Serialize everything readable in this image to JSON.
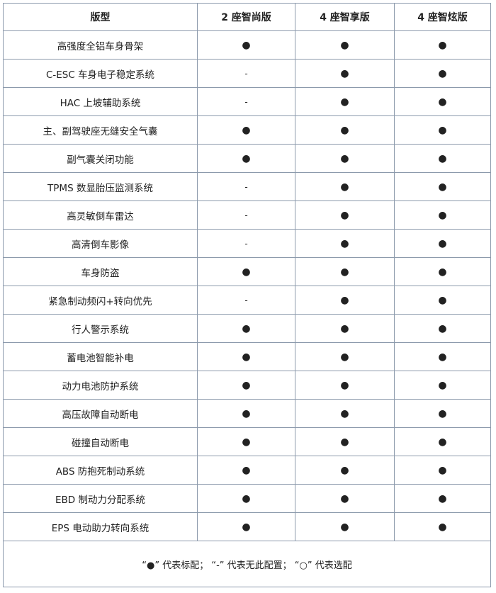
{
  "headers": [
    "版型",
    "2 座智尚版",
    "4 座智享版",
    "4 座智炫版"
  ],
  "symbols": {
    "standard": "●",
    "none": "-",
    "optional": "○"
  },
  "rows": [
    {
      "feature": "高强度全铝车身骨架",
      "values": [
        "●",
        "●",
        "●"
      ]
    },
    {
      "feature": "C-ESC 车身电子稳定系统",
      "values": [
        "-",
        "●",
        "●"
      ]
    },
    {
      "feature": "HAC 上坡辅助系统",
      "values": [
        "-",
        "●",
        "●"
      ]
    },
    {
      "feature": "主、副驾驶座无缝安全气囊",
      "values": [
        "●",
        "●",
        "●"
      ]
    },
    {
      "feature": "副气囊关闭功能",
      "values": [
        "●",
        "●",
        "●"
      ]
    },
    {
      "feature": "TPMS 数显胎压监测系统",
      "values": [
        "-",
        "●",
        "●"
      ]
    },
    {
      "feature": "高灵敏倒车雷达",
      "values": [
        "-",
        "●",
        "●"
      ]
    },
    {
      "feature": "高清倒车影像",
      "values": [
        "-",
        "●",
        "●"
      ]
    },
    {
      "feature": "车身防盗",
      "values": [
        "●",
        "●",
        "●"
      ]
    },
    {
      "feature": "紧急制动频闪+转向优先",
      "values": [
        "-",
        "●",
        "●"
      ]
    },
    {
      "feature": "行人警示系统",
      "values": [
        "●",
        "●",
        "●"
      ]
    },
    {
      "feature": "蓄电池智能补电",
      "values": [
        "●",
        "●",
        "●"
      ]
    },
    {
      "feature": "动力电池防护系统",
      "values": [
        "●",
        "●",
        "●"
      ]
    },
    {
      "feature": "高压故障自动断电",
      "values": [
        "●",
        "●",
        "●"
      ]
    },
    {
      "feature": "碰撞自动断电",
      "values": [
        "●",
        "●",
        "●"
      ]
    },
    {
      "feature": "ABS 防抱死制动系统",
      "values": [
        "●",
        "●",
        "●"
      ]
    },
    {
      "feature": "EBD 制动力分配系统",
      "values": [
        "●",
        "●",
        "●"
      ]
    },
    {
      "feature": "EPS 电动助力转向系统",
      "values": [
        "●",
        "●",
        "●"
      ]
    }
  ],
  "footer": "“●” 代表标配； “-” 代表无此配置； “○” 代表选配"
}
